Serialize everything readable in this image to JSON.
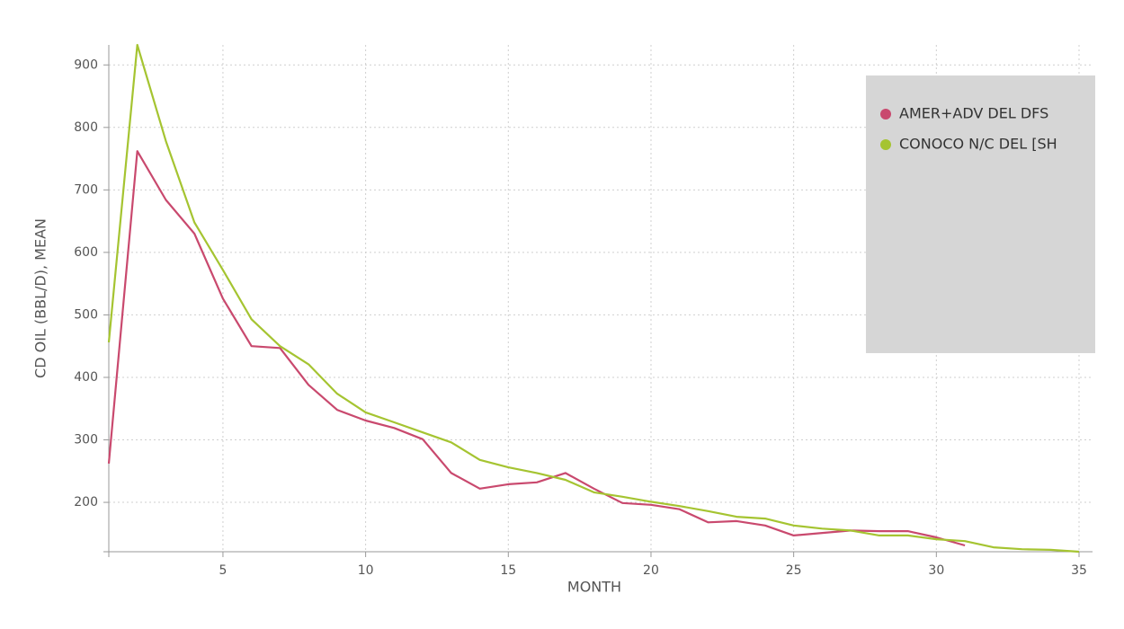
{
  "chart_data": {
    "type": "line",
    "x_label": "MONTH",
    "y_label": "CD OIL (BBL/D), MEAN",
    "x": [
      1,
      2,
      3,
      4,
      5,
      6,
      7,
      8,
      9,
      10,
      11,
      12,
      13,
      14,
      15,
      16,
      17,
      18,
      19,
      20,
      21,
      22,
      23,
      24,
      25,
      26,
      27,
      28,
      29,
      30,
      31,
      32,
      33,
      34,
      35
    ],
    "series": [
      {
        "name": "AMER+ADV DEL DFS",
        "color": "#c9496e",
        "values": [
          262,
          762,
          684,
          630,
          526,
          450,
          447,
          388,
          348,
          331,
          319,
          301,
          247,
          222,
          229,
          232,
          247,
          222,
          199,
          196,
          189,
          168,
          170,
          163,
          147,
          151,
          155,
          154,
          154,
          144,
          131,
          null,
          null,
          null,
          null
        ]
      },
      {
        "name": "CONOCO N/C DEL [SH",
        "color": "#a5c431",
        "values": [
          456,
          932,
          778,
          648,
          572,
          493,
          450,
          421,
          374,
          344,
          328,
          312,
          296,
          268,
          256,
          247,
          236,
          216,
          209,
          201,
          194,
          186,
          177,
          174,
          163,
          158,
          155,
          147,
          147,
          141,
          138,
          128,
          125,
          124,
          121
        ]
      }
    ],
    "xlim": [
      1,
      35
    ],
    "xticks": [
      5,
      10,
      15,
      20,
      25,
      30,
      35
    ],
    "ylim": [
      121,
      932
    ],
    "yticks": [
      200,
      300,
      400,
      500,
      600,
      700,
      800,
      900
    ],
    "grid": true,
    "legend_position": "upper right"
  }
}
